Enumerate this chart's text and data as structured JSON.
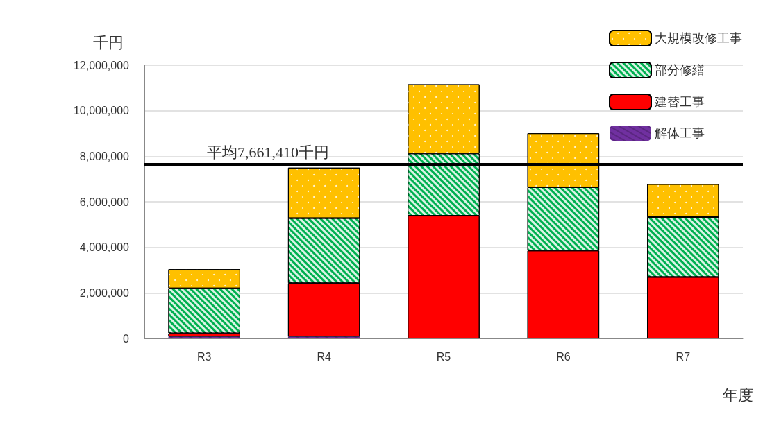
{
  "chart_data": {
    "type": "bar",
    "stacked": true,
    "categories": [
      "R3",
      "R4",
      "R5",
      "R6",
      "R7"
    ],
    "series": [
      {
        "name": "解体工事",
        "color": "#7030a0",
        "values": [
          80000,
          80000,
          0,
          0,
          0
        ]
      },
      {
        "name": "建替工事",
        "color": "#ff0000",
        "values": [
          150000,
          2350000,
          5390000,
          3860000,
          2700000
        ]
      },
      {
        "name": "部分修繕",
        "color": "#00b050",
        "values": [
          1970000,
          2850000,
          2730000,
          2780000,
          2630000
        ]
      },
      {
        "name": "大規模改修工事",
        "color": "#ffc000",
        "values": [
          840000,
          2220000,
          3040000,
          2370000,
          1450000
        ]
      }
    ],
    "ylim": [
      0,
      12000000
    ],
    "yticks": [
      0,
      {
        "value": 2000000,
        "label": "2,000,000"
      },
      {
        "value": 4000000,
        "label": "4,000,000"
      },
      {
        "value": 6000000,
        "label": "6,000,000"
      },
      {
        "value": 8000000,
        "label": "8,000,000"
      },
      {
        "value": 10000000,
        "label": "10,000,000"
      },
      {
        "value": 12000000,
        "label": "12,000,000"
      }
    ],
    "ylabel": "千円",
    "xlabel": "年度",
    "grid": "y",
    "legend": "top right",
    "ref_lines": [
      {
        "axis": "y",
        "value": 7661410,
        "label": "平均7,661,410千円",
        "color": "#000000"
      }
    ]
  }
}
